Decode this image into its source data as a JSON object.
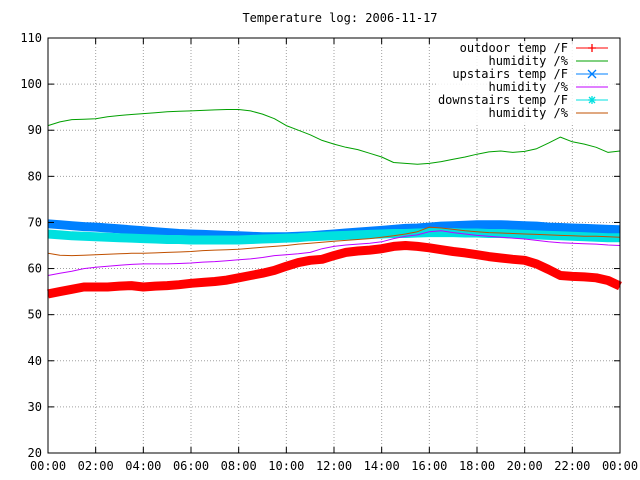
{
  "chart_data": {
    "type": "line",
    "title": "Temperature log: 2006-11-17",
    "xlabel": "",
    "ylabel": "",
    "ylim": [
      20,
      110
    ],
    "yticks": [
      20,
      30,
      40,
      50,
      60,
      70,
      80,
      90,
      100,
      110
    ],
    "xticks": [
      "00:00",
      "02:00",
      "04:00",
      "06:00",
      "08:00",
      "10:00",
      "12:00",
      "14:00",
      "16:00",
      "18:00",
      "20:00",
      "22:00",
      "00:00"
    ],
    "xlim_hours": [
      0,
      24
    ],
    "grid": true,
    "legend_position": "top-right",
    "series": [
      {
        "name": "outdoor temp /F",
        "color": "#ff0000",
        "marker": "plus",
        "x": [
          0,
          0.5,
          1,
          1.5,
          2,
          2.5,
          3,
          3.5,
          4,
          4.5,
          5,
          5.5,
          6,
          6.5,
          7,
          7.5,
          8,
          8.5,
          9,
          9.5,
          10,
          10.5,
          11,
          11.5,
          12,
          12.5,
          13,
          13.5,
          14,
          14.5,
          15,
          15.5,
          16,
          16.5,
          17,
          17.5,
          18,
          18.5,
          19,
          19.5,
          20,
          20.5,
          21,
          21.5,
          22,
          22.5,
          23,
          23.5,
          24
        ],
        "values": [
          54.5,
          55,
          55.5,
          56,
          56,
          56,
          56.2,
          56.3,
          56,
          56.2,
          56.3,
          56.5,
          56.8,
          57,
          57.2,
          57.5,
          58,
          58.5,
          59,
          59.6,
          60.5,
          61.3,
          61.8,
          62,
          62.8,
          63.5,
          63.8,
          64,
          64.3,
          64.8,
          65,
          64.8,
          64.5,
          64.1,
          63.7,
          63.4,
          63,
          62.6,
          62.3,
          62,
          61.8,
          61,
          59.8,
          58.5,
          58.3,
          58.2,
          58,
          57.4,
          56.2
        ]
      },
      {
        "name": "humidity /%",
        "color": "#00a000",
        "marker": "none",
        "x": [
          0,
          0.5,
          1,
          1.5,
          2,
          2.5,
          3,
          3.5,
          4,
          4.5,
          5,
          5.5,
          6,
          6.5,
          7,
          7.5,
          8,
          8.5,
          9,
          9.5,
          10,
          10.5,
          11,
          11.5,
          12,
          12.5,
          13,
          13.5,
          14,
          14.5,
          15,
          15.5,
          16,
          16.5,
          17,
          17.5,
          18,
          18.5,
          19,
          19.5,
          20,
          20.5,
          21,
          21.5,
          22,
          22.5,
          23,
          23.5,
          24
        ],
        "values": [
          91,
          91.8,
          92.3,
          92.4,
          92.5,
          92.9,
          93.2,
          93.4,
          93.6,
          93.8,
          94,
          94.1,
          94.2,
          94.3,
          94.4,
          94.5,
          94.5,
          94.2,
          93.5,
          92.5,
          91,
          90,
          89,
          87.8,
          87,
          86.3,
          85.8,
          85,
          84.2,
          83,
          82.8,
          82.6,
          82.8,
          83.2,
          83.7,
          84.2,
          84.8,
          85.3,
          85.5,
          85.2,
          85.4,
          86,
          87.2,
          88.5,
          87.5,
          87,
          86.3,
          85.2,
          85.5
        ]
      },
      {
        "name": "upstairs temp /F",
        "color": "#0080ff",
        "marker": "cross",
        "x": [
          0,
          0.5,
          1,
          1.5,
          2,
          2.5,
          3,
          3.5,
          4,
          4.5,
          5,
          5.5,
          6,
          6.5,
          7,
          7.5,
          8,
          8.5,
          9,
          9.5,
          10,
          10.5,
          11,
          11.5,
          12,
          12.5,
          13,
          13.5,
          14,
          14.5,
          15,
          15.5,
          16,
          16.5,
          17,
          17.5,
          18,
          18.5,
          19,
          19.5,
          20,
          20.5,
          21,
          21.5,
          22,
          22.5,
          23,
          23.5,
          24
        ],
        "values": [
          69.7,
          69.5,
          69.3,
          69.1,
          69,
          68.8,
          68.6,
          68.4,
          68.2,
          68,
          67.8,
          67.6,
          67.5,
          67.4,
          67.3,
          67.2,
          67.1,
          67,
          66.9,
          66.9,
          66.9,
          67,
          67.1,
          67.3,
          67.5,
          67.7,
          67.9,
          68.1,
          68.3,
          68.5,
          68.7,
          68.8,
          69,
          69.2,
          69.3,
          69.4,
          69.5,
          69.5,
          69.5,
          69.4,
          69.3,
          69.2,
          69,
          68.9,
          68.8,
          68.7,
          68.6,
          68.5,
          68.4
        ]
      },
      {
        "name": "humidity /%",
        "color": "#c000ff",
        "marker": "none",
        "x": [
          0,
          0.5,
          1,
          1.5,
          2,
          2.5,
          3,
          3.5,
          4,
          4.5,
          5,
          5.5,
          6,
          6.5,
          7,
          7.5,
          8,
          8.5,
          9,
          9.5,
          10,
          10.5,
          11,
          11.5,
          12,
          12.5,
          13,
          13.5,
          14,
          14.5,
          15,
          15.5,
          16,
          16.5,
          17,
          17.5,
          18,
          18.5,
          19,
          19.5,
          20,
          20.5,
          21,
          21.5,
          22,
          22.5,
          23,
          23.5,
          24
        ],
        "values": [
          58.5,
          59,
          59.4,
          60,
          60.3,
          60.5,
          60.7,
          60.9,
          61,
          61,
          61,
          61.1,
          61.2,
          61.4,
          61.5,
          61.7,
          61.9,
          62.1,
          62.4,
          62.8,
          63,
          63.2,
          63.5,
          64.3,
          64.8,
          65.1,
          65.3,
          65.5,
          65.8,
          66.5,
          67,
          67.3,
          68,
          68.2,
          67.8,
          67.5,
          67.2,
          67,
          66.8,
          66.6,
          66.4,
          66.1,
          65.8,
          65.6,
          65.5,
          65.4,
          65.3,
          65.1,
          65
        ]
      },
      {
        "name": "downstairs temp /F",
        "color": "#00e0e0",
        "marker": "star",
        "x": [
          0,
          0.5,
          1,
          1.5,
          2,
          2.5,
          3,
          3.5,
          4,
          4.5,
          5,
          5.5,
          6,
          6.5,
          7,
          7.5,
          8,
          8.5,
          9,
          9.5,
          10,
          10.5,
          11,
          11.5,
          12,
          12.5,
          13,
          13.5,
          14,
          14.5,
          15,
          15.5,
          16,
          16.5,
          17,
          17.5,
          18,
          18.5,
          19,
          19.5,
          20,
          20.5,
          21,
          21.5,
          22,
          22.5,
          23,
          23.5,
          24
        ],
        "values": [
          67.5,
          67.3,
          67.1,
          67,
          66.9,
          66.8,
          66.7,
          66.6,
          66.5,
          66.4,
          66.3,
          66.3,
          66.2,
          66.2,
          66.2,
          66.2,
          66.2,
          66.3,
          66.4,
          66.5,
          66.6,
          66.7,
          66.9,
          67,
          67.1,
          67.2,
          67.3,
          67.4,
          67.5,
          67.6,
          67.6,
          67.7,
          67.8,
          67.8,
          67.8,
          67.7,
          67.7,
          67.6,
          67.6,
          67.5,
          67.4,
          67.3,
          67.2,
          67.1,
          67,
          66.9,
          66.8,
          66.7,
          66.7
        ]
      },
      {
        "name": "humidity /%",
        "color": "#c05000",
        "marker": "none",
        "x": [
          0,
          0.5,
          1,
          1.5,
          2,
          2.5,
          3,
          3.5,
          4,
          4.5,
          5,
          5.5,
          6,
          6.5,
          7,
          7.5,
          8,
          8.5,
          9,
          9.5,
          10,
          10.5,
          11,
          11.5,
          12,
          12.5,
          13,
          13.5,
          14,
          14.5,
          15,
          15.5,
          16,
          16.5,
          17,
          17.5,
          18,
          18.5,
          19,
          19.5,
          20,
          20.5,
          21,
          21.5,
          22,
          22.5,
          23,
          23.5,
          24
        ],
        "values": [
          63.3,
          62.9,
          62.8,
          62.9,
          63,
          63.1,
          63.2,
          63.3,
          63.3,
          63.4,
          63.5,
          63.6,
          63.7,
          63.9,
          64,
          64.1,
          64.2,
          64.4,
          64.6,
          64.8,
          65,
          65.3,
          65.5,
          65.7,
          65.9,
          66.1,
          66.3,
          66.5,
          66.8,
          67.1,
          67.5,
          68,
          69,
          68.8,
          68.5,
          68.2,
          68,
          67.8,
          67.7,
          67.6,
          67.5,
          67.4,
          67.3,
          67.2,
          67.1,
          67,
          67,
          66.9,
          66.8
        ]
      }
    ]
  }
}
